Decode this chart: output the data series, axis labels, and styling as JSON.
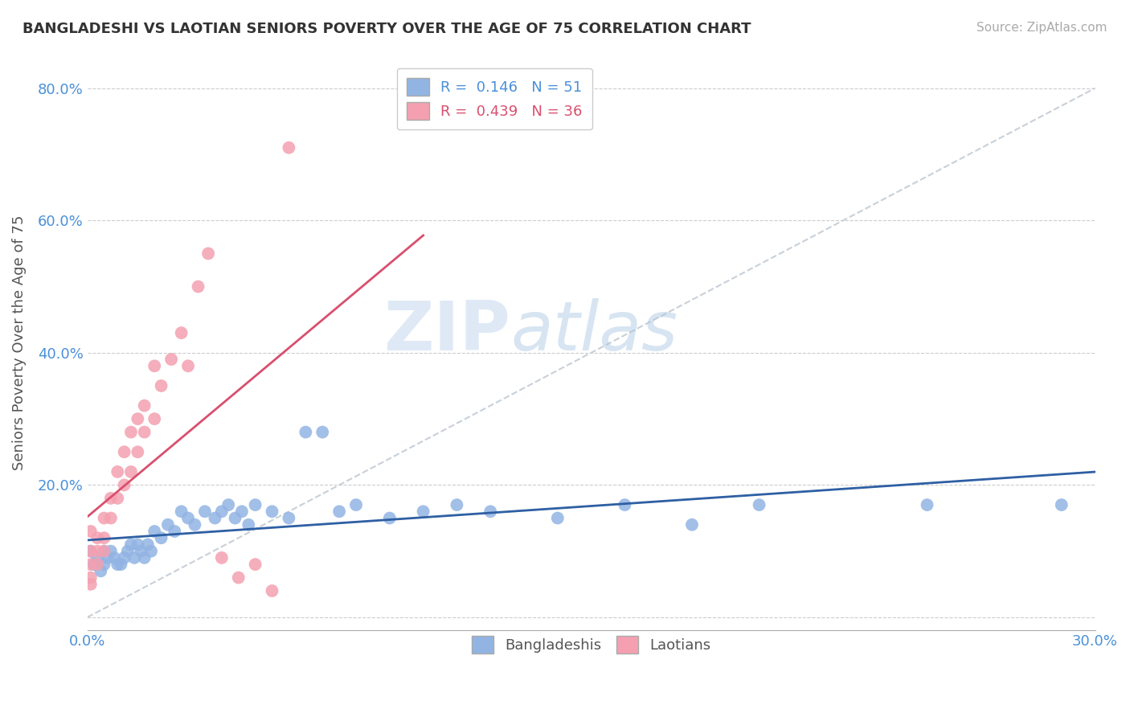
{
  "title": "BANGLADESHI VS LAOTIAN SENIORS POVERTY OVER THE AGE OF 75 CORRELATION CHART",
  "source": "Source: ZipAtlas.com",
  "ylabel": "Seniors Poverty Over the Age of 75",
  "xlim": [
    0.0,
    0.3
  ],
  "ylim": [
    -0.02,
    0.85
  ],
  "xticks": [
    0.0,
    0.05,
    0.1,
    0.15,
    0.2,
    0.25,
    0.3
  ],
  "xticklabels": [
    "0.0%",
    "",
    "",
    "",
    "",
    "",
    "30.0%"
  ],
  "yticks": [
    0.0,
    0.2,
    0.4,
    0.6,
    0.8
  ],
  "yticklabels": [
    "",
    "20.0%",
    "40.0%",
    "60.0%",
    "80.0%"
  ],
  "bangladeshi_r": 0.146,
  "bangladeshi_n": 51,
  "laotian_r": 0.439,
  "laotian_n": 36,
  "bangladeshi_color": "#92b4e3",
  "laotian_color": "#f4a0b0",
  "bangladeshi_line_color": "#2e5fa3",
  "laotian_line_color": "#d94f6e",
  "diagonal_color": "#c8d0d8",
  "background_color": "#ffffff",
  "watermark_text": "ZIPatlas",
  "bangladeshi_x": [
    0.001,
    0.002,
    0.003,
    0.004,
    0.005,
    0.005,
    0.006,
    0.007,
    0.008,
    0.009,
    0.01,
    0.011,
    0.012,
    0.013,
    0.014,
    0.015,
    0.016,
    0.017,
    0.018,
    0.019,
    0.02,
    0.022,
    0.024,
    0.026,
    0.028,
    0.03,
    0.032,
    0.035,
    0.038,
    0.04,
    0.042,
    0.044,
    0.046,
    0.048,
    0.05,
    0.055,
    0.06,
    0.065,
    0.07,
    0.075,
    0.08,
    0.09,
    0.1,
    0.11,
    0.12,
    0.14,
    0.16,
    0.18,
    0.2,
    0.25,
    0.29
  ],
  "bangladeshi_y": [
    0.1,
    0.08,
    0.09,
    0.07,
    0.1,
    0.08,
    0.09,
    0.1,
    0.09,
    0.08,
    0.08,
    0.09,
    0.1,
    0.11,
    0.09,
    0.11,
    0.1,
    0.09,
    0.11,
    0.1,
    0.13,
    0.12,
    0.14,
    0.13,
    0.16,
    0.15,
    0.14,
    0.16,
    0.15,
    0.16,
    0.17,
    0.15,
    0.16,
    0.14,
    0.17,
    0.16,
    0.15,
    0.28,
    0.28,
    0.16,
    0.17,
    0.15,
    0.16,
    0.17,
    0.16,
    0.15,
    0.17,
    0.14,
    0.17,
    0.17,
    0.17
  ],
  "laotian_x": [
    0.001,
    0.001,
    0.001,
    0.001,
    0.001,
    0.003,
    0.003,
    0.003,
    0.005,
    0.005,
    0.005,
    0.007,
    0.007,
    0.009,
    0.009,
    0.011,
    0.011,
    0.013,
    0.013,
    0.015,
    0.015,
    0.017,
    0.017,
    0.02,
    0.02,
    0.022,
    0.025,
    0.028,
    0.03,
    0.033,
    0.036,
    0.04,
    0.045,
    0.05,
    0.055,
    0.06
  ],
  "laotian_y": [
    0.06,
    0.08,
    0.1,
    0.13,
    0.05,
    0.1,
    0.12,
    0.08,
    0.1,
    0.12,
    0.15,
    0.15,
    0.18,
    0.18,
    0.22,
    0.2,
    0.25,
    0.22,
    0.28,
    0.25,
    0.3,
    0.28,
    0.32,
    0.3,
    0.38,
    0.35,
    0.39,
    0.43,
    0.38,
    0.5,
    0.55,
    0.09,
    0.06,
    0.08,
    0.04,
    0.71
  ]
}
